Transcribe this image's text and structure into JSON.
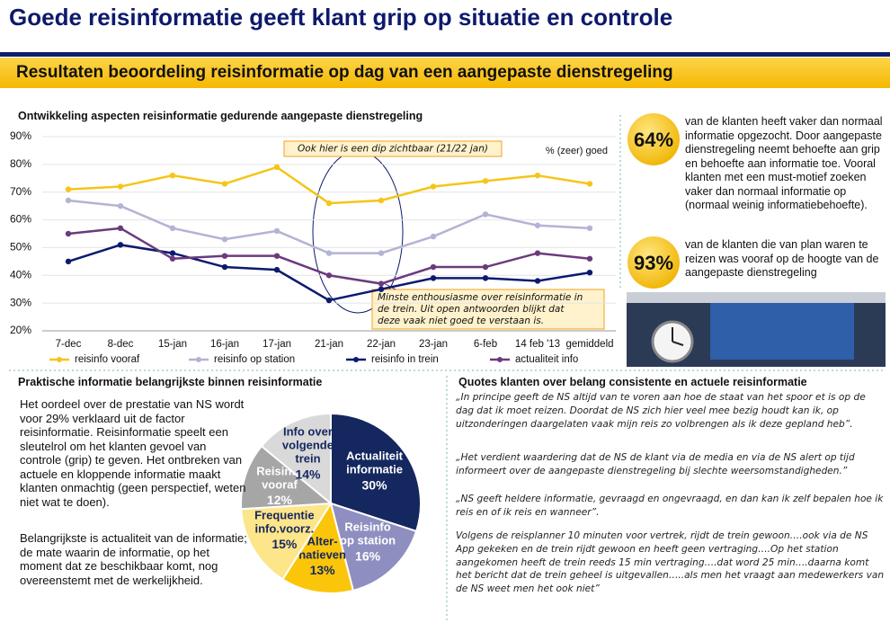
{
  "title": "Goede reisinformatie geeft klant grip op situatie en controle",
  "banner": "Resultaten  beoordeling  reisinformatie  op dag van een aangepaste dienstregeling",
  "chart_data": [
    {
      "type": "line",
      "title": "Ontwikkeling aspecten reisinformatie gedurende aangepaste dienstregeling",
      "categories": [
        "7-dec",
        "8-dec",
        "15-jan",
        "16-jan",
        "17-jan",
        "21-jan",
        "22-jan",
        "23-jan",
        "6-feb",
        "14 feb '13",
        "gemiddeld"
      ],
      "series": [
        {
          "name": "reisinfo vooraf",
          "color": "#f5c518",
          "values": [
            71,
            72,
            76,
            73,
            79,
            66,
            67,
            72,
            74,
            76,
            73
          ]
        },
        {
          "name": "reisinfo op station",
          "color": "#b3b3d5",
          "values": [
            67,
            65,
            57,
            53,
            56,
            48,
            48,
            54,
            62,
            58,
            57
          ]
        },
        {
          "name": "reisinfo in trein",
          "color": "#0b1a6e",
          "values": [
            45,
            51,
            48,
            43,
            42,
            31,
            35,
            39,
            39,
            38,
            41
          ]
        },
        {
          "name": "actualiteit info",
          "color": "#6b3a7e",
          "values": [
            55,
            57,
            46,
            47,
            47,
            40,
            37,
            43,
            43,
            48,
            46
          ]
        }
      ],
      "ylim": [
        20,
        90
      ],
      "yticks": [
        {
          "value": 20,
          "label": "20%"
        },
        {
          "value": 30,
          "label": "30%"
        },
        {
          "value": 40,
          "label": "40%"
        },
        {
          "value": 50,
          "label": "50%"
        },
        {
          "value": 60,
          "label": "60%"
        },
        {
          "value": 70,
          "label": "70%"
        },
        {
          "value": 80,
          "label": "80%"
        },
        {
          "value": 90,
          "label": "90%"
        }
      ],
      "grid": true,
      "unit_note": "% (zeer) goed",
      "annotations": [
        "Ook hier is een dip zichtbaar (21/22 jan)",
        "Minste enthousiasme over reisinformatie in de trein. Uit open antwoorden blijkt dat deze vaak niet goed te verstaan is."
      ]
    },
    {
      "type": "pie",
      "title": "Praktische informatie belangrijkste binnen reisinformatie",
      "categories": [
        "Actualiteit\ninformatie",
        "Reisinfo\nop station",
        "Alter-\nnatieven",
        "Frequentie\ninfo.voorz.",
        "Reisinfo\nvooraf",
        "Info over\nvolgende\ntrein"
      ],
      "values": [
        30,
        16,
        13,
        15,
        12,
        14
      ],
      "value_labels": [
        "30%",
        "16%",
        "13%",
        "15%",
        "12%",
        "14%"
      ],
      "colors": [
        "#14275f",
        "#8e8fc0",
        "#fbc50a",
        "#fde58a",
        "#a6a6a6",
        "#d9d9d9"
      ]
    }
  ],
  "stats": [
    {
      "value": "64%",
      "text": "van de klanten heeft vaker dan normaal informatie opgezocht. Door aangepaste dienstregeling neemt behoefte aan grip en behoefte aan informatie toe. Vooral klanten met een must-motief zoeken vaker dan normaal informatie op (normaal weinig informatiebehoefte)."
    },
    {
      "value": "93%",
      "text": "van de klanten die van plan waren te reizen was vooraf op de hoogte van de aangepaste dienstregeling"
    }
  ],
  "explanation": [
    "Het oordeel over de prestatie van NS wordt voor 29% verklaard uit de factor reisinformatie. Reisinformatie speelt een sleutelrol om het klanten gevoel van controle (grip) te geven. Het ontbreken van actuele en kloppende informatie maakt klanten onmachtig (geen perspectief, weten niet wat te doen).",
    "Belangrijkste is actualiteit van de informatie; de mate waarin de informatie, op het moment dat ze beschikbaar komt, nog overeenstemt met de werkelijkheid."
  ],
  "quotes": {
    "title": "Quotes klanten over belang consistente en actuele reisinformatie",
    "items": [
      "„In principe geeft de NS altijd van te voren aan hoe de staat van het spoor et is op de dag dat ik moet reizen. Doordat de NS zich hier veel mee bezig houdt kan ik, op uitzonderingen daargelaten vaak mijn reis zo volbrengen als ik deze gepland heb”.",
      "„Het verdient waardering dat de NS de klant via de media en via de NS alert op tijd informeert over de aangepaste dienstregeling bij slechte weersomstandigheden.”",
      "„NS geeft heldere informatie, gevraagd en ongevraagd, en dan kan ik zelf bepalen hoe ik reis en of ik reis en wanneer”.",
      "Volgens de reisplanner 10 minuten voor vertrek, rijdt de trein gewoon….ook via de NS App gekeken en de trein rijdt gewoon en heeft geen vertraging….Op het station aangekomen heeft de trein reeds 15 min vertraging….dat word 25 min….daarna komt het bericht dat de trein geheel is uitgevallen…..als men het vraagt aan medewerkers van de NS weet men het ook niet”"
    ]
  }
}
